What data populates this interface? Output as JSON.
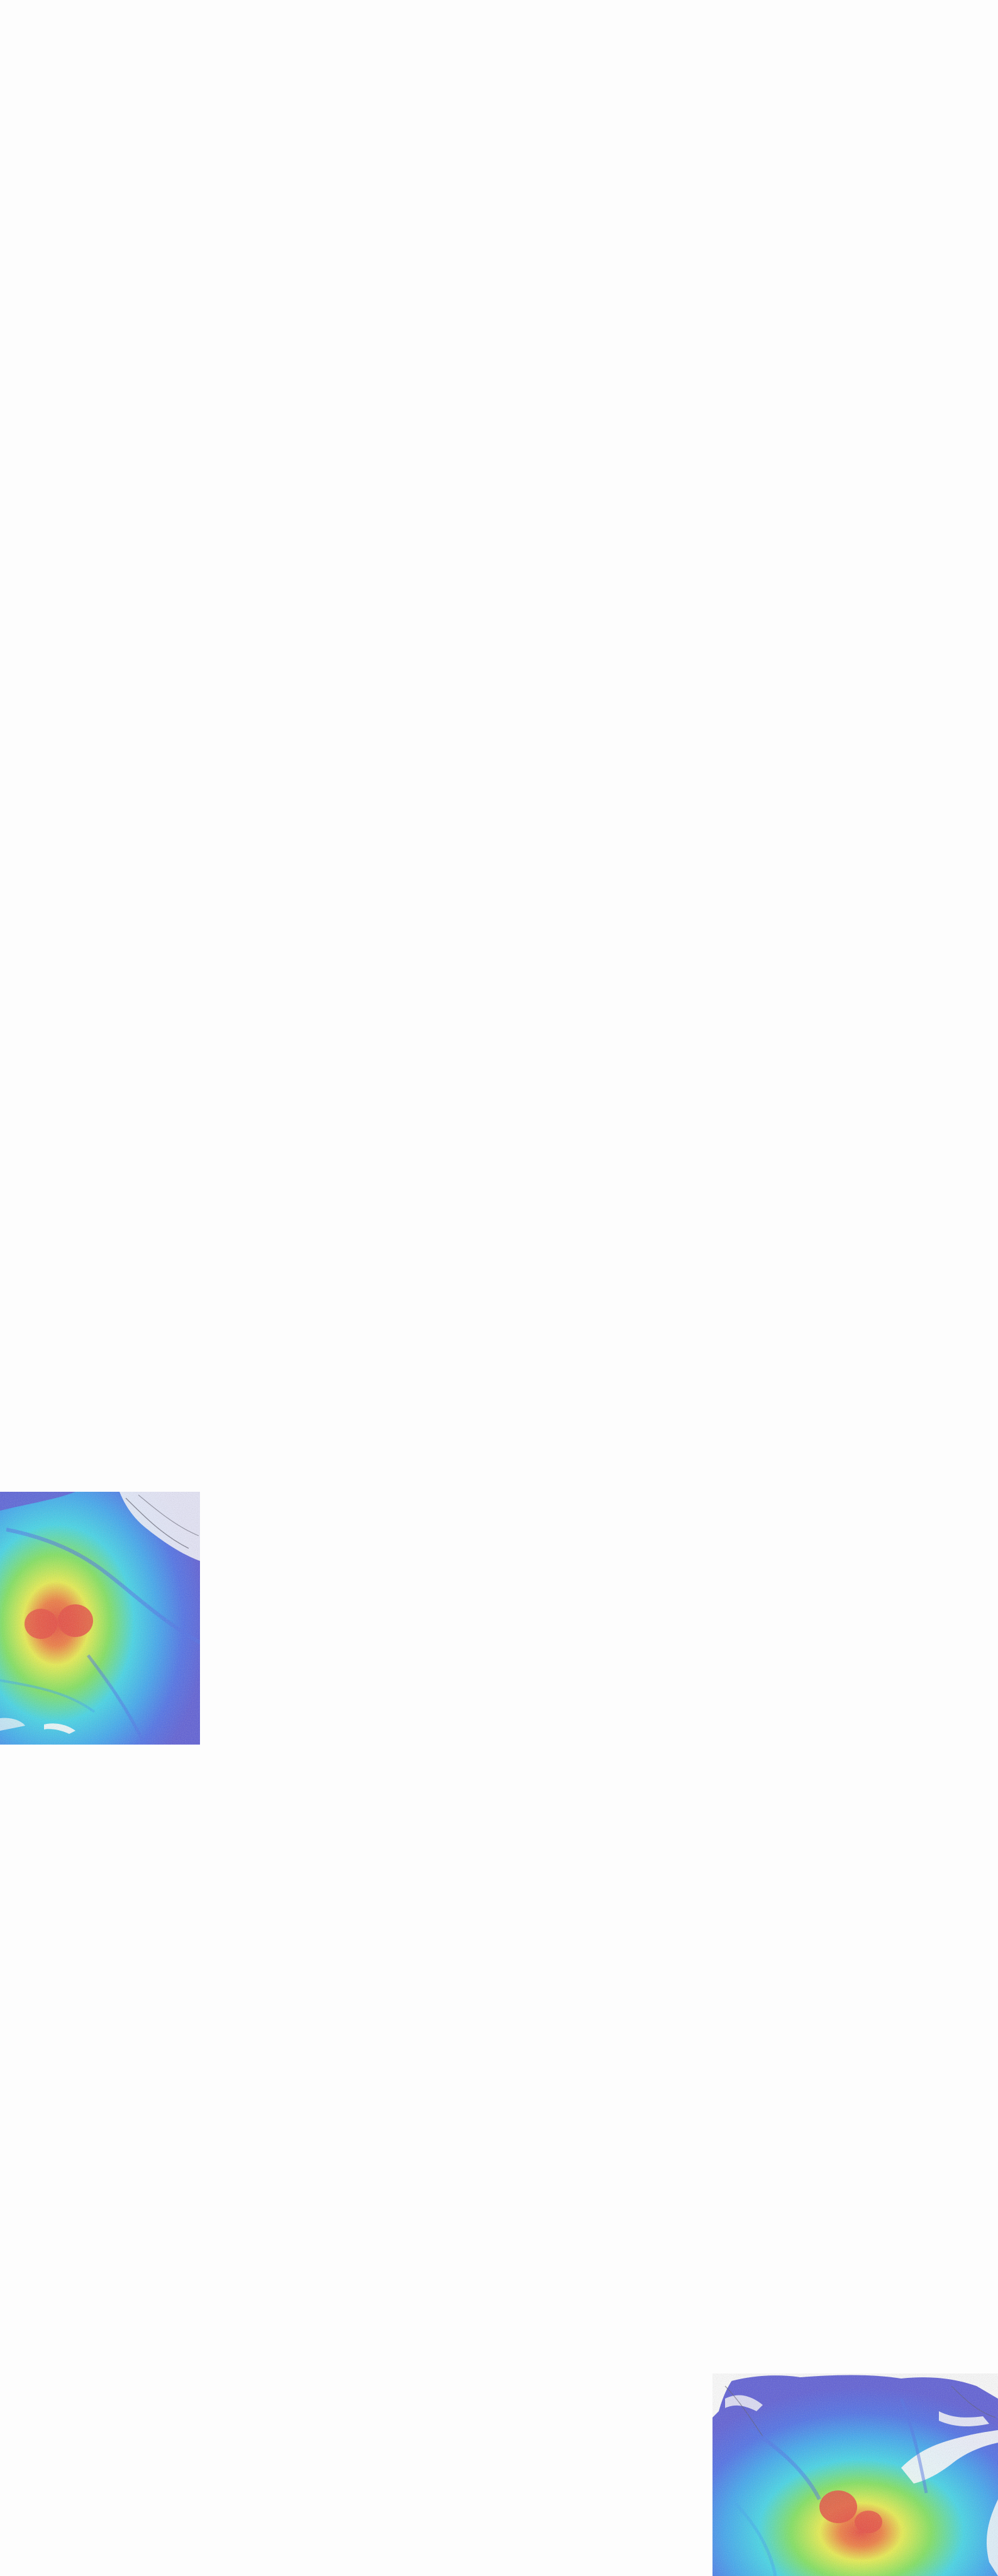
{
  "page": {
    "background": "#fdfdfd"
  },
  "palette": {
    "hot": "#e8473c",
    "warm": "#f5a23a",
    "yellow": "#e9ef4a",
    "green": "#7ee35a",
    "cyan": "#3ed6e8",
    "sky": "#3aa6f0",
    "blue": "#4a6de8",
    "indigo": "#5a5ad6",
    "noise": "#555566"
  },
  "tiles": [
    {
      "id": "density-map-left",
      "icon": "heatmap-image"
    },
    {
      "id": "density-map-bottom-right",
      "icon": "heatmap-image"
    }
  ]
}
